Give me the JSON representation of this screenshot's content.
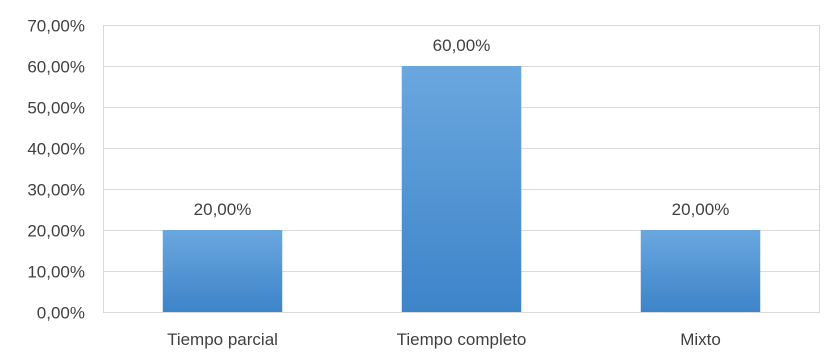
{
  "chart_data": {
    "type": "bar",
    "title": "",
    "xlabel": "",
    "ylabel": "",
    "categories": [
      "Tiempo parcial",
      "Tiempo completo",
      "Mixto"
    ],
    "values": [
      20,
      60,
      20
    ],
    "data_labels": [
      "20,00%",
      "60,00%",
      "20,00%"
    ],
    "ylim": [
      0,
      70
    ],
    "yticks": [
      0,
      10,
      20,
      30,
      40,
      50,
      60,
      70
    ],
    "ytick_labels": [
      "0,00%",
      "10,00%",
      "20,00%",
      "30,00%",
      "40,00%",
      "50,00%",
      "60,00%",
      "70,00%"
    ],
    "grid": true,
    "legend": "none",
    "bar_color_top": "#6aa7df",
    "bar_color_bottom": "#3d84c9"
  }
}
